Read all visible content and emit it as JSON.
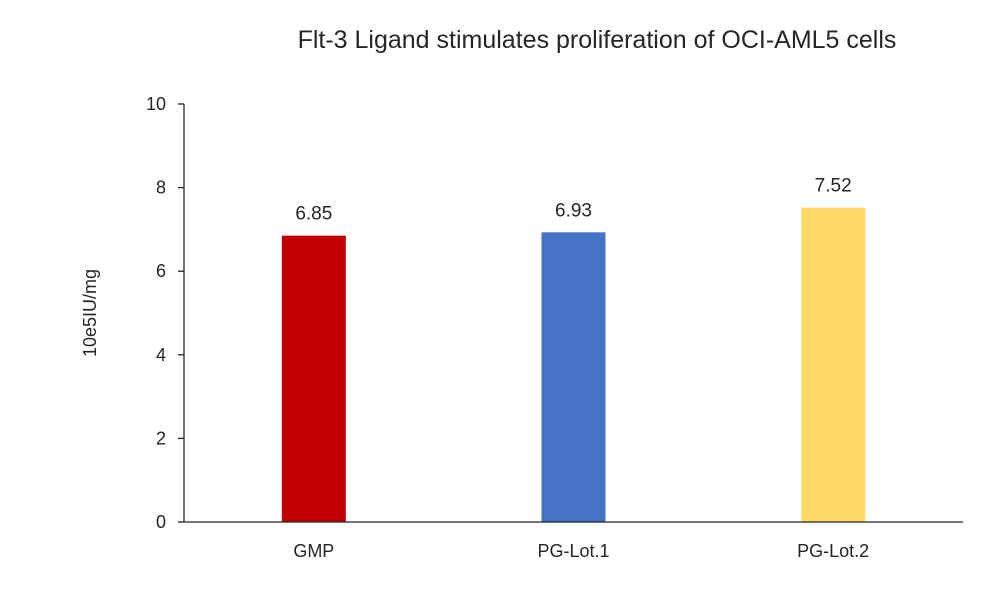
{
  "chart_data": {
    "type": "bar",
    "title": "Flt-3 Ligand stimulates proliferation of OCI-AML5 cells",
    "xlabel": "",
    "ylabel": "10e5IU/mg",
    "ylim": [
      0,
      10
    ],
    "yticks": [
      0,
      2,
      4,
      6,
      8,
      10
    ],
    "categories": [
      "GMP",
      "PG-Lot.1",
      "PG-Lot.2"
    ],
    "values": [
      6.85,
      6.93,
      7.52
    ],
    "data_labels": [
      "6.85",
      "6.93",
      "7.52"
    ],
    "colors": [
      "#c00000",
      "#4472c4",
      "#ffd966"
    ],
    "grid": false,
    "legend": "none"
  }
}
